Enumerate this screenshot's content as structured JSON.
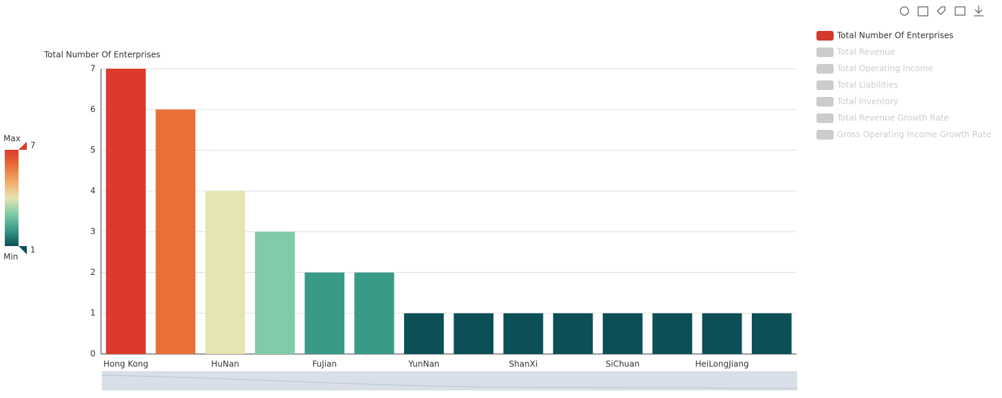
{
  "chart_data": {
    "type": "bar",
    "y_axis_name": "Total Number Of Enterprises",
    "categories": [
      "Hong Kong",
      null,
      "HuNan",
      null,
      "FuJian",
      null,
      "YunNan",
      null,
      "ShanXi",
      null,
      "SiChuan",
      null,
      "HeiLongJiang",
      null
    ],
    "series": [
      {
        "name": "Total Number Of Enterprises",
        "color": "#d4382b",
        "values": [
          7,
          6,
          4,
          3,
          2,
          2,
          1,
          1,
          1,
          1,
          1,
          1,
          1,
          1
        ]
      }
    ],
    "inactive_series": [
      "Total Revenue",
      "Total Operating Income",
      "Total Liabilities",
      "Total Inventory",
      "Total Revenue Growth Rate",
      "Gross Operating Income Growth Rate"
    ],
    "inactive_color": "#cccccc",
    "ylim": [
      0,
      7
    ],
    "yticks": [
      0,
      1,
      2,
      3,
      4,
      5,
      6,
      7
    ],
    "grid": true,
    "visual_map": {
      "min": 1,
      "max": 7,
      "text_high": "Max",
      "text_low": "Min",
      "colors": [
        "#0d4f56",
        "#3a9a88",
        "#80cba8",
        "#e6e4b0",
        "#f2ab6b",
        "#e87038",
        "#dc3a2b"
      ]
    }
  }
}
